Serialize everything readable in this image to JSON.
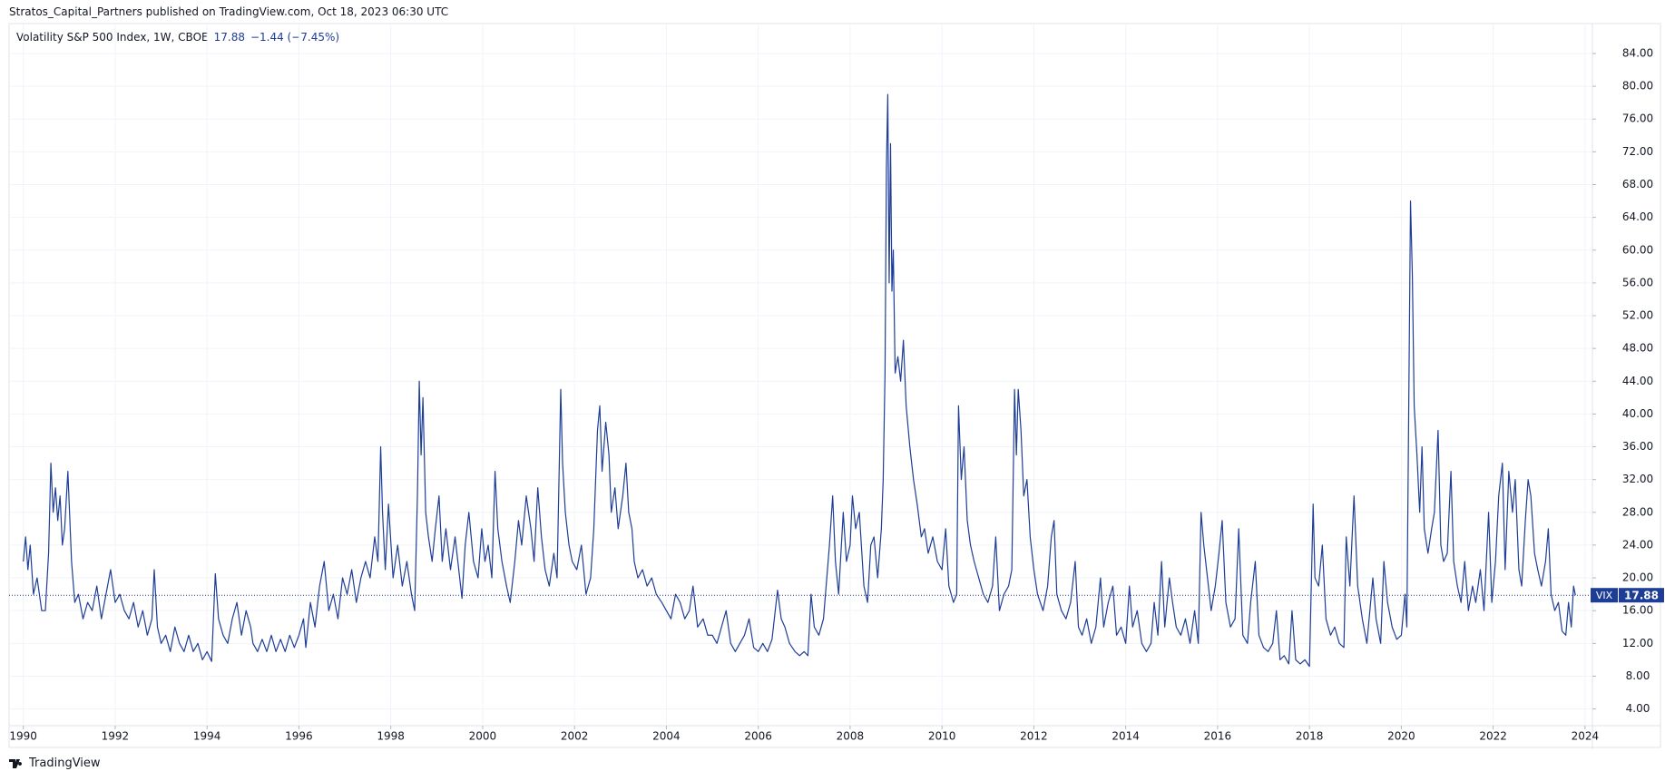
{
  "header": "Stratos_Capital_Partners published on TradingView.com, Oct 18, 2023 06:30 UTC",
  "footer": "TradingView",
  "chart_data": {
    "type": "line",
    "title": "Volatility S&P 500 Index, 1W, CBOE",
    "change": "−1.44 (−7.45%)",
    "xlim": [
      1989.69,
      2024.16
    ],
    "xticks": [
      1990,
      1992,
      1994,
      1996,
      1998,
      2000,
      2002,
      2004,
      2006,
      2008,
      2010,
      2012,
      2014,
      2016,
      2018,
      2020,
      2022,
      2024
    ],
    "ylim": [
      1.96,
      87.43
    ],
    "yticks": [
      {
        "value": 4,
        "label": "4.00"
      },
      {
        "value": 8,
        "label": "8.00"
      },
      {
        "value": 12,
        "label": "12.00"
      },
      {
        "value": 16,
        "label": "16.00"
      },
      {
        "value": 20,
        "label": "20.00"
      },
      {
        "value": 24,
        "label": "24.00"
      },
      {
        "value": 28,
        "label": "28.00"
      },
      {
        "value": 32,
        "label": "32.00"
      },
      {
        "value": 36,
        "label": "36.00"
      },
      {
        "value": 40,
        "label": "40.00"
      },
      {
        "value": 44,
        "label": "44.00"
      },
      {
        "value": 48,
        "label": "48.00"
      },
      {
        "value": 52,
        "label": "52.00"
      },
      {
        "value": 56,
        "label": "56.00"
      },
      {
        "value": 60,
        "label": "60.00"
      },
      {
        "value": 64,
        "label": "64.00"
      },
      {
        "value": 68,
        "label": "68.00"
      },
      {
        "value": 72,
        "label": "72.00"
      },
      {
        "value": 76,
        "label": "76.00"
      },
      {
        "value": 80,
        "label": "80.00"
      },
      {
        "value": 84,
        "label": "84.00"
      }
    ],
    "grid": true,
    "x": [
      1990.0,
      1990.05,
      1990.1,
      1990.15,
      1990.22,
      1990.3,
      1990.4,
      1990.48,
      1990.55,
      1990.6,
      1990.65,
      1990.7,
      1990.75,
      1990.8,
      1990.85,
      1990.9,
      1990.97,
      1991.05,
      1991.12,
      1991.2,
      1991.3,
      1991.4,
      1991.5,
      1991.6,
      1991.7,
      1991.8,
      1991.9,
      1992.0,
      1992.1,
      1992.2,
      1992.3,
      1992.4,
      1992.5,
      1992.6,
      1992.7,
      1992.8,
      1992.85,
      1992.92,
      1993.0,
      1993.1,
      1993.2,
      1993.3,
      1993.4,
      1993.5,
      1993.6,
      1993.7,
      1993.8,
      1993.9,
      1994.0,
      1994.1,
      1994.18,
      1994.25,
      1994.35,
      1994.45,
      1994.55,
      1994.65,
      1994.75,
      1994.85,
      1994.95,
      1995.0,
      1995.1,
      1995.2,
      1995.3,
      1995.4,
      1995.5,
      1995.6,
      1995.7,
      1995.8,
      1995.9,
      1996.0,
      1996.1,
      1996.15,
      1996.25,
      1996.35,
      1996.45,
      1996.55,
      1996.65,
      1996.75,
      1996.85,
      1996.95,
      1997.05,
      1997.15,
      1997.25,
      1997.35,
      1997.45,
      1997.55,
      1997.65,
      1997.72,
      1997.78,
      1997.82,
      1997.88,
      1997.95,
      1998.05,
      1998.15,
      1998.25,
      1998.35,
      1998.45,
      1998.52,
      1998.58,
      1998.62,
      1998.66,
      1998.7,
      1998.76,
      1998.82,
      1998.9,
      1998.97,
      1999.05,
      1999.12,
      1999.2,
      1999.3,
      1999.4,
      1999.5,
      1999.55,
      1999.62,
      1999.7,
      1999.8,
      1999.9,
      1999.98,
      2000.05,
      2000.12,
      2000.2,
      2000.27,
      2000.33,
      2000.42,
      2000.52,
      2000.6,
      2000.7,
      2000.78,
      2000.85,
      2000.95,
      2001.05,
      2001.12,
      2001.2,
      2001.28,
      2001.36,
      2001.45,
      2001.55,
      2001.62,
      2001.7,
      2001.74,
      2001.8,
      2001.88,
      2001.95,
      2002.05,
      2002.15,
      2002.25,
      2002.35,
      2002.42,
      2002.5,
      2002.55,
      2002.6,
      2002.68,
      2002.75,
      2002.8,
      2002.88,
      2002.95,
      2003.05,
      2003.12,
      2003.18,
      2003.25,
      2003.3,
      2003.38,
      2003.48,
      2003.58,
      2003.68,
      2003.78,
      2003.9,
      2004.0,
      2004.1,
      2004.2,
      2004.3,
      2004.4,
      2004.5,
      2004.58,
      2004.68,
      2004.8,
      2004.9,
      2005.0,
      2005.1,
      2005.2,
      2005.3,
      2005.4,
      2005.5,
      2005.6,
      2005.7,
      2005.8,
      2005.9,
      2006.0,
      2006.1,
      2006.2,
      2006.3,
      2006.42,
      2006.5,
      2006.58,
      2006.68,
      2006.8,
      2006.9,
      2007.0,
      2007.08,
      2007.15,
      2007.22,
      2007.32,
      2007.42,
      2007.55,
      2007.62,
      2007.68,
      2007.75,
      2007.85,
      2007.92,
      2008.0,
      2008.05,
      2008.12,
      2008.2,
      2008.3,
      2008.38,
      2008.45,
      2008.52,
      2008.6,
      2008.68,
      2008.72,
      2008.76,
      2008.79,
      2008.82,
      2008.85,
      2008.88,
      2008.91,
      2008.94,
      2008.98,
      2009.04,
      2009.1,
      2009.16,
      2009.22,
      2009.3,
      2009.38,
      2009.46,
      2009.55,
      2009.62,
      2009.7,
      2009.8,
      2009.9,
      2010.0,
      2010.08,
      2010.15,
      2010.25,
      2010.32,
      2010.36,
      2010.42,
      2010.48,
      2010.55,
      2010.62,
      2010.7,
      2010.8,
      2010.9,
      2011.0,
      2011.1,
      2011.17,
      2011.25,
      2011.35,
      2011.45,
      2011.52,
      2011.58,
      2011.62,
      2011.66,
      2011.72,
      2011.78,
      2011.85,
      2011.92,
      2012.0,
      2012.08,
      2012.2,
      2012.3,
      2012.38,
      2012.44,
      2012.5,
      2012.6,
      2012.7,
      2012.8,
      2012.9,
      2012.97,
      2013.05,
      2013.15,
      2013.25,
      2013.35,
      2013.45,
      2013.52,
      2013.62,
      2013.72,
      2013.8,
      2013.9,
      2014.0,
      2014.08,
      2014.15,
      2014.25,
      2014.35,
      2014.45,
      2014.55,
      2014.62,
      2014.7,
      2014.78,
      2014.85,
      2014.95,
      2015.02,
      2015.1,
      2015.2,
      2015.3,
      2015.4,
      2015.5,
      2015.58,
      2015.64,
      2015.7,
      2015.78,
      2015.86,
      2015.95,
      2016.03,
      2016.1,
      2016.18,
      2016.28,
      2016.38,
      2016.46,
      2016.55,
      2016.65,
      2016.72,
      2016.82,
      2016.9,
      2017.0,
      2017.1,
      2017.2,
      2017.28,
      2017.36,
      2017.45,
      2017.55,
      2017.62,
      2017.7,
      2017.8,
      2017.9,
      2018.0,
      2018.08,
      2018.12,
      2018.2,
      2018.28,
      2018.36,
      2018.46,
      2018.55,
      2018.65,
      2018.75,
      2018.8,
      2018.88,
      2018.97,
      2019.05,
      2019.15,
      2019.25,
      2019.38,
      2019.45,
      2019.55,
      2019.62,
      2019.7,
      2019.8,
      2019.9,
      2020.0,
      2020.08,
      2020.12,
      2020.16,
      2020.2,
      2020.24,
      2020.28,
      2020.34,
      2020.4,
      2020.45,
      2020.5,
      2020.58,
      2020.66,
      2020.72,
      2020.8,
      2020.86,
      2020.92,
      2021.0,
      2021.08,
      2021.14,
      2021.22,
      2021.3,
      2021.38,
      2021.46,
      2021.55,
      2021.62,
      2021.72,
      2021.8,
      2021.9,
      2021.97,
      2022.05,
      2022.12,
      2022.2,
      2022.26,
      2022.34,
      2022.42,
      2022.48,
      2022.56,
      2022.62,
      2022.7,
      2022.76,
      2022.82,
      2022.9,
      2022.97,
      2023.05,
      2023.14,
      2023.2,
      2023.26,
      2023.34,
      2023.42,
      2023.5,
      2023.58,
      2023.64,
      2023.7,
      2023.75,
      2023.79
    ],
    "series": [
      {
        "name": "VIX",
        "color": "#1e3d96",
        "values": [
          22,
          25,
          21,
          24,
          18,
          20,
          16,
          16,
          23,
          34,
          28,
          31,
          27,
          30,
          24,
          26,
          33,
          22,
          17,
          18,
          15,
          17,
          16,
          19,
          15,
          18,
          21,
          17,
          18,
          16,
          15,
          17,
          14,
          16,
          13,
          15,
          21,
          14,
          12,
          13,
          11,
          14,
          12,
          11,
          13,
          11,
          12,
          10,
          11,
          9.8,
          20.5,
          15,
          13,
          12,
          15,
          17,
          13,
          16,
          14,
          12,
          11,
          12.5,
          11,
          13,
          11,
          12.5,
          11,
          13,
          11.5,
          13,
          15,
          11.5,
          17,
          14,
          19,
          22,
          16,
          18,
          15,
          20,
          18,
          21,
          17,
          20,
          22,
          20,
          25,
          22,
          36,
          28,
          21,
          29,
          20,
          24,
          19,
          22,
          18,
          16,
          30,
          44,
          35,
          42,
          28,
          25,
          22,
          26,
          30,
          22,
          26,
          21,
          25,
          20,
          17.5,
          24,
          28,
          22,
          20,
          26,
          22,
          24,
          20,
          33,
          26,
          22,
          19,
          17,
          22,
          27,
          24,
          30,
          26,
          22,
          31,
          25,
          21,
          19,
          23,
          20,
          43,
          34,
          28,
          24,
          22,
          21,
          24,
          18,
          20,
          26,
          38,
          41,
          33,
          39,
          35,
          28,
          31,
          26,
          30,
          34,
          28,
          26,
          22,
          20,
          21,
          19,
          20,
          18,
          17,
          16,
          15,
          18,
          17,
          15,
          16,
          19,
          14,
          15,
          13,
          13,
          12,
          14,
          16,
          12,
          11,
          12,
          13,
          15,
          11.5,
          11,
          12,
          11,
          12.5,
          18.5,
          15,
          14,
          12,
          11,
          10.5,
          11,
          10.5,
          18,
          14,
          13,
          15,
          24,
          30,
          22,
          18,
          28,
          22,
          24,
          30,
          26,
          28,
          19,
          17,
          24,
          25,
          20,
          26,
          32,
          45,
          70,
          79,
          56,
          73,
          55,
          60,
          45,
          47,
          44,
          49,
          41,
          36,
          32,
          29,
          25,
          26,
          23,
          25,
          22,
          21,
          26,
          19,
          17,
          18,
          41,
          32,
          36,
          27,
          24,
          22,
          20,
          18,
          17,
          19,
          25,
          16,
          18,
          19,
          21,
          43,
          35,
          43,
          38,
          30,
          32,
          25,
          21,
          18,
          16,
          19,
          25,
          27,
          18,
          16,
          15,
          17,
          22,
          14,
          13,
          15,
          12,
          14,
          20,
          14,
          17,
          19,
          13,
          14,
          12,
          19,
          14,
          16,
          12,
          11,
          12,
          17,
          13,
          22,
          14,
          20,
          17,
          14,
          13,
          15,
          12,
          16,
          12,
          28,
          24,
          20,
          16,
          19,
          23,
          27,
          17,
          14,
          15,
          26,
          13,
          12,
          17,
          22,
          13,
          11.5,
          11,
          12,
          16,
          10,
          10.5,
          9.5,
          16,
          10,
          9.5,
          10,
          9.2,
          29,
          20,
          19,
          24,
          15,
          13,
          14,
          12,
          11.5,
          25,
          19,
          30,
          19,
          15,
          12,
          20,
          15,
          12,
          22,
          17,
          14,
          12.5,
          13,
          18,
          14,
          40,
          66,
          57,
          41,
          35,
          28,
          36,
          26,
          23,
          26,
          28,
          38,
          24,
          22,
          23,
          33,
          22,
          19,
          17,
          22,
          16,
          19,
          17,
          21,
          16,
          28,
          17,
          22,
          30,
          34,
          21,
          33,
          28,
          32,
          21,
          19,
          27,
          32,
          30,
          23,
          21,
          19,
          22,
          26,
          18,
          16,
          17,
          13.5,
          13,
          17,
          14,
          19,
          17.88
        ]
      }
    ]
  }
}
